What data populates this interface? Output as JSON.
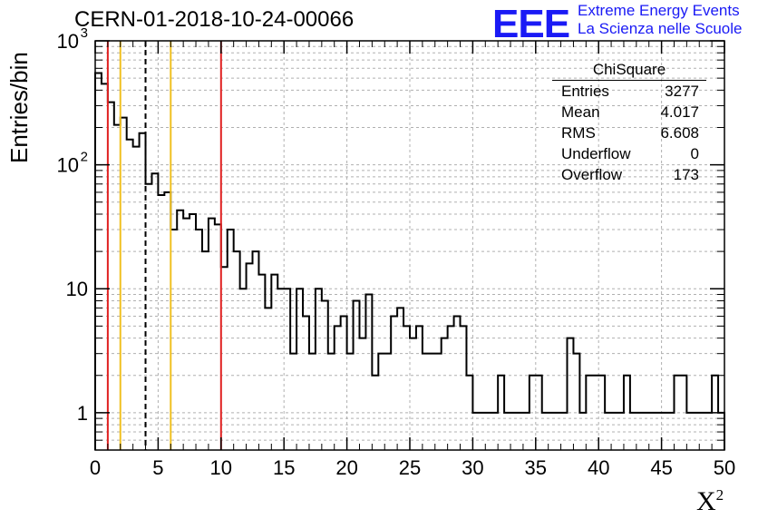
{
  "title": "CERN-01-2018-10-24-00066",
  "logo": {
    "mark": "EEE",
    "line1": "Extreme Energy Events",
    "line2": "La Scienza nelle Scuole",
    "color": "#1a1af5"
  },
  "stats": {
    "name": "ChiSquare",
    "rows": [
      {
        "label": "Entries",
        "value": "3277"
      },
      {
        "label": "Mean",
        "value": "4.017"
      },
      {
        "label": "RMS",
        "value": "6.608"
      },
      {
        "label": "Underflow",
        "value": "0"
      },
      {
        "label": "Overflow",
        "value": "173"
      }
    ]
  },
  "chart_data": {
    "type": "histogram",
    "ylabel": "Entries/bin",
    "xlabel": "X",
    "xlabel_superscript": "2",
    "xlim": [
      0,
      50
    ],
    "ylim": [
      0.5,
      1000
    ],
    "yscale": "log",
    "grid": true,
    "bin_width": 0.5,
    "values": [
      550,
      450,
      320,
      210,
      240,
      160,
      140,
      180,
      70,
      85,
      57,
      60,
      30,
      43,
      37,
      40,
      30,
      20,
      37,
      33,
      15,
      30,
      20,
      10,
      16,
      20,
      13,
      7,
      13,
      10,
      10,
      3,
      10,
      6,
      3,
      10,
      8,
      3,
      5,
      6,
      3,
      8,
      4,
      9,
      2,
      3,
      3,
      6,
      7,
      5,
      4,
      5,
      3,
      3,
      3,
      4,
      5,
      6,
      5,
      2,
      1,
      1,
      1,
      1,
      2,
      1,
      1,
      1,
      1,
      2,
      2,
      1,
      1,
      1,
      1,
      4,
      3,
      1,
      2,
      2,
      2,
      1,
      1,
      1,
      2,
      1,
      1,
      1,
      1,
      1,
      1,
      1,
      2,
      2,
      1,
      1,
      1,
      1,
      2,
      1
    ],
    "x_ticks": [
      0,
      5,
      10,
      15,
      20,
      25,
      30,
      35,
      40,
      45,
      50
    ],
    "y_ticks": [
      {
        "value": 1,
        "label": "1"
      },
      {
        "value": 10,
        "label": "10"
      },
      {
        "value": 100,
        "label": "10",
        "exp": "2"
      },
      {
        "value": 1000,
        "label": "10",
        "exp": "3"
      }
    ],
    "vertical_lines": [
      {
        "x": 1,
        "color": "#e02020",
        "style": "solid"
      },
      {
        "x": 2,
        "color": "#f0c020",
        "style": "solid"
      },
      {
        "x": 4,
        "color": "#000000",
        "style": "dashed"
      },
      {
        "x": 6,
        "color": "#f0c020",
        "style": "solid"
      },
      {
        "x": 10,
        "color": "#e02020",
        "style": "solid"
      }
    ]
  }
}
